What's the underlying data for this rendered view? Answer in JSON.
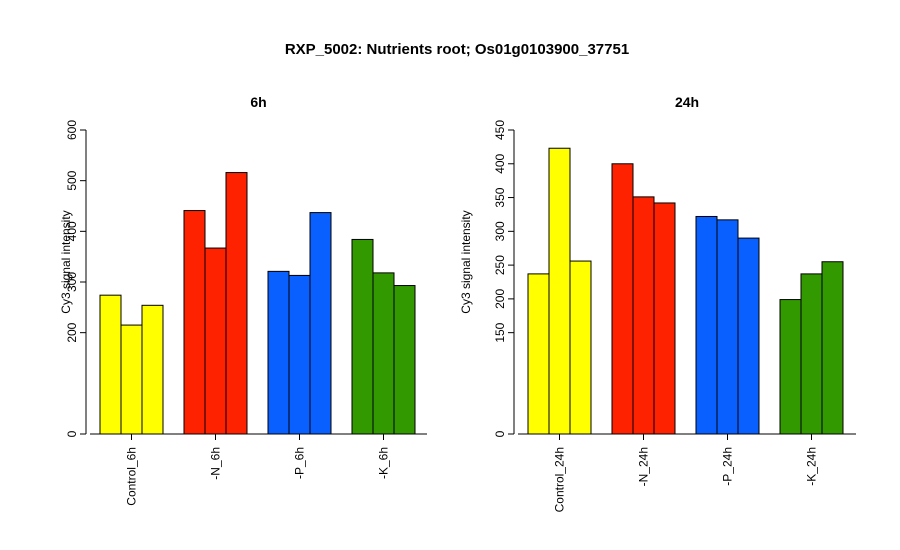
{
  "figure": {
    "title": "RXP_5002: Nutrients root; Os01g0103900_37751"
  },
  "chart_data": [
    {
      "type": "bar",
      "title": "6h",
      "ylabel": "Cy3 signal intensity",
      "xlabel": "",
      "ylim": [
        0,
        600
      ],
      "ytick_values": [
        0,
        200,
        300,
        400,
        500,
        600
      ],
      "yticks": [
        "0",
        "200",
        "300",
        "400",
        "500",
        "600"
      ],
      "grid": false,
      "legend": "none",
      "groups": [
        {
          "label": "Control_6h",
          "color": "#ffff00",
          "values": [
            274,
            215,
            254
          ]
        },
        {
          "label": "-N_6h",
          "color": "#ff2200",
          "values": [
            441,
            367,
            516
          ]
        },
        {
          "label": "-P_6h",
          "color": "#0a5fff",
          "values": [
            321,
            313,
            437
          ]
        },
        {
          "label": "-K_6h",
          "color": "#339900",
          "values": [
            384,
            318,
            293
          ]
        }
      ]
    },
    {
      "type": "bar",
      "title": "24h",
      "ylabel": "Cy3 signal intensity",
      "xlabel": "",
      "ylim": [
        0,
        450
      ],
      "ytick_values": [
        0,
        150,
        200,
        250,
        300,
        350,
        400,
        450
      ],
      "yticks": [
        "0",
        "150",
        "200",
        "250",
        "300",
        "350",
        "400",
        "450"
      ],
      "grid": false,
      "legend": "none",
      "groups": [
        {
          "label": "Control_24h",
          "color": "#ffff00",
          "values": [
            237,
            423,
            256
          ]
        },
        {
          "label": "-N_24h",
          "color": "#ff2200",
          "values": [
            400,
            351,
            342
          ]
        },
        {
          "label": "-P_24h",
          "color": "#0a5fff",
          "values": [
            322,
            317,
            290
          ]
        },
        {
          "label": "-K_24h",
          "color": "#339900",
          "values": [
            199,
            237,
            255
          ]
        }
      ]
    }
  ]
}
